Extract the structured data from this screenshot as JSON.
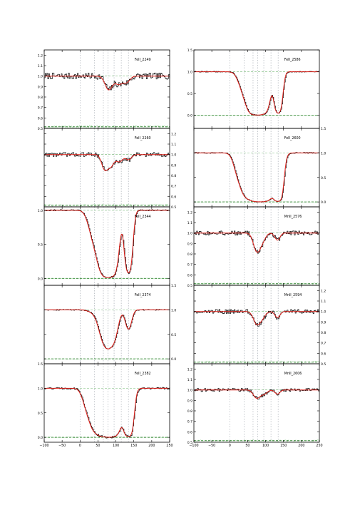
{
  "figure": {
    "x_tick_labels": [
      "−100",
      "−50",
      "0",
      "50",
      "100",
      "150",
      "200",
      "250"
    ],
    "colors": {
      "data": "#000000",
      "model": "#e0201a",
      "continuum": "#3a9a3a",
      "error": "#2b7a2b",
      "component_lines": "#9aa0a8",
      "frame": "#000000"
    }
  },
  "chart_data": [
    {
      "type": "line",
      "label": "FeII_2249",
      "xlim": [
        -100,
        250
      ],
      "ylim": [
        0.5,
        1.25
      ],
      "yticks": [
        0.5,
        0.6,
        0.7,
        0.8,
        0.9,
        1.0,
        1.1,
        1.2
      ],
      "ytick_labels": [
        "0.5",
        "0.6",
        "0.7",
        "0.8",
        "0.9",
        "1.0",
        "1.1",
        "1.2"
      ],
      "ytick_side": "left",
      "absorption": [
        [
          80,
          0.14,
          10
        ],
        [
          108,
          0.08,
          10
        ],
        [
          130,
          0.06,
          9
        ]
      ],
      "noise": 0.03
    },
    {
      "type": "line",
      "label": "FeII_2260",
      "xlim": [
        -100,
        250
      ],
      "ylim": [
        0.5,
        1.25
      ],
      "yticks": [
        0.5,
        0.6,
        0.7,
        0.8,
        0.9,
        1.0,
        1.1,
        1.2
      ],
      "ytick_labels": [
        "0.5",
        "0.6",
        "0.7",
        "0.8",
        "0.9",
        "1.0",
        "1.1",
        "1.2"
      ],
      "ytick_side": "right",
      "absorption": [
        [
          68,
          0.14,
          8
        ],
        [
          85,
          0.12,
          9
        ],
        [
          110,
          0.07,
          9
        ],
        [
          135,
          0.05,
          8
        ]
      ],
      "noise": 0.02
    },
    {
      "type": "line",
      "label": "FeII_2344",
      "xlim": [
        -100,
        250
      ],
      "ylim": [
        -0.1,
        1.05
      ],
      "yticks": [
        0.0,
        0.5,
        1.0
      ],
      "ytick_labels": [
        "0.0",
        "0.5",
        "1.0"
      ],
      "ytick_side": "left",
      "absorption": [
        [
          40,
          0.5,
          14
        ],
        [
          75,
          4.0,
          16
        ],
        [
          95,
          1.2,
          10
        ],
        [
          135,
          2.5,
          8
        ]
      ],
      "noise": 0.01
    },
    {
      "type": "line",
      "label": "FeII_2374",
      "xlim": [
        -100,
        250
      ],
      "ylim": [
        -0.1,
        1.5
      ],
      "yticks": [
        0.0,
        0.5,
        1.0,
        1.5
      ],
      "ytick_labels": [
        "0.0",
        "0.5",
        "1.0",
        "1.5"
      ],
      "ytick_side": "right",
      "absorption": [
        [
          40,
          0.06,
          14
        ],
        [
          75,
          1.5,
          15
        ],
        [
          95,
          0.5,
          10
        ],
        [
          135,
          0.5,
          8
        ]
      ],
      "noise": 0.01
    },
    {
      "type": "line",
      "label": "FeII_2382",
      "xlim": [
        -100,
        250
      ],
      "ylim": [
        -0.1,
        1.5
      ],
      "yticks": [
        0.0,
        0.5,
        1.0,
        1.5
      ],
      "ytick_labels": [
        "0.0",
        "0.5",
        "1.0",
        "1.5"
      ],
      "ytick_side": "left",
      "absorption": [
        [
          20,
          0.4,
          12
        ],
        [
          42,
          1.4,
          13
        ],
        [
          80,
          6.0,
          20
        ],
        [
          135,
          4.0,
          9
        ]
      ],
      "noise": 0.02
    },
    {
      "type": "line",
      "label": "FeII_2586",
      "xlim": [
        -100,
        250
      ],
      "ylim": [
        -0.3,
        1.5
      ],
      "yticks": [
        0.0,
        0.5,
        1.0,
        1.5
      ],
      "ytick_labels": [
        "0.0",
        "0.5",
        "1.0",
        "1.5"
      ],
      "ytick_side": "left",
      "absorption": [
        [
          35,
          0.3,
          12
        ],
        [
          75,
          5.0,
          18
        ],
        [
          100,
          1.0,
          10
        ],
        [
          135,
          3.0,
          8
        ]
      ],
      "noise": 0.01
    },
    {
      "type": "line",
      "label": "FeII_2600",
      "xlim": [
        -100,
        250
      ],
      "ylim": [
        -0.1,
        1.5
      ],
      "yticks": [
        0.0,
        0.5,
        1.0,
        1.5
      ],
      "ytick_labels": [
        "0.0",
        "0.5",
        "1.0",
        "1.5"
      ],
      "ytick_side": "right",
      "absorption": [
        [
          25,
          0.5,
          12
        ],
        [
          45,
          1.2,
          12
        ],
        [
          85,
          6.0,
          22
        ],
        [
          135,
          4.0,
          9
        ]
      ],
      "noise": 0.01
    },
    {
      "type": "line",
      "label": "MnII_2576",
      "xlim": [
        -100,
        250
      ],
      "ylim": [
        0.5,
        1.25
      ],
      "yticks": [
        0.5,
        0.6,
        0.7,
        0.8,
        0.9,
        1.0,
        1.1,
        1.2
      ],
      "ytick_labels": [
        "0.5",
        "0.6",
        "0.7",
        "0.8",
        "0.9",
        "1.0",
        "1.1",
        "1.2"
      ],
      "ytick_side": "left",
      "absorption": [
        [
          75,
          0.18,
          9
        ],
        [
          90,
          0.08,
          9
        ],
        [
          133,
          0.07,
          7
        ]
      ],
      "noise": 0.02
    },
    {
      "type": "line",
      "label": "MnII_2594",
      "xlim": [
        -100,
        250
      ],
      "ylim": [
        0.5,
        1.25
      ],
      "yticks": [
        0.5,
        0.6,
        0.7,
        0.8,
        0.9,
        1.0,
        1.1,
        1.2
      ],
      "ytick_labels": [
        "0.5",
        "0.6",
        "0.7",
        "0.8",
        "0.9",
        "1.0",
        "1.1",
        "1.2"
      ],
      "ytick_side": "right",
      "absorption": [
        [
          75,
          0.12,
          9
        ],
        [
          90,
          0.06,
          9
        ],
        [
          133,
          0.06,
          7
        ]
      ],
      "noise": 0.02
    },
    {
      "type": "line",
      "label": "MnII_2606",
      "xlim": [
        -100,
        250
      ],
      "ylim": [
        0.5,
        1.25
      ],
      "yticks": [
        0.5,
        0.6,
        0.7,
        0.8,
        0.9,
        1.0,
        1.1,
        1.2
      ],
      "ytick_labels": [
        "0.5",
        "0.6",
        "0.7",
        "0.8",
        "0.9",
        "1.0",
        "1.1",
        "1.2"
      ],
      "ytick_side": "left",
      "absorption": [
        [
          75,
          0.08,
          9
        ],
        [
          95,
          0.04,
          9
        ],
        [
          133,
          0.04,
          7
        ]
      ],
      "noise": 0.015
    }
  ]
}
